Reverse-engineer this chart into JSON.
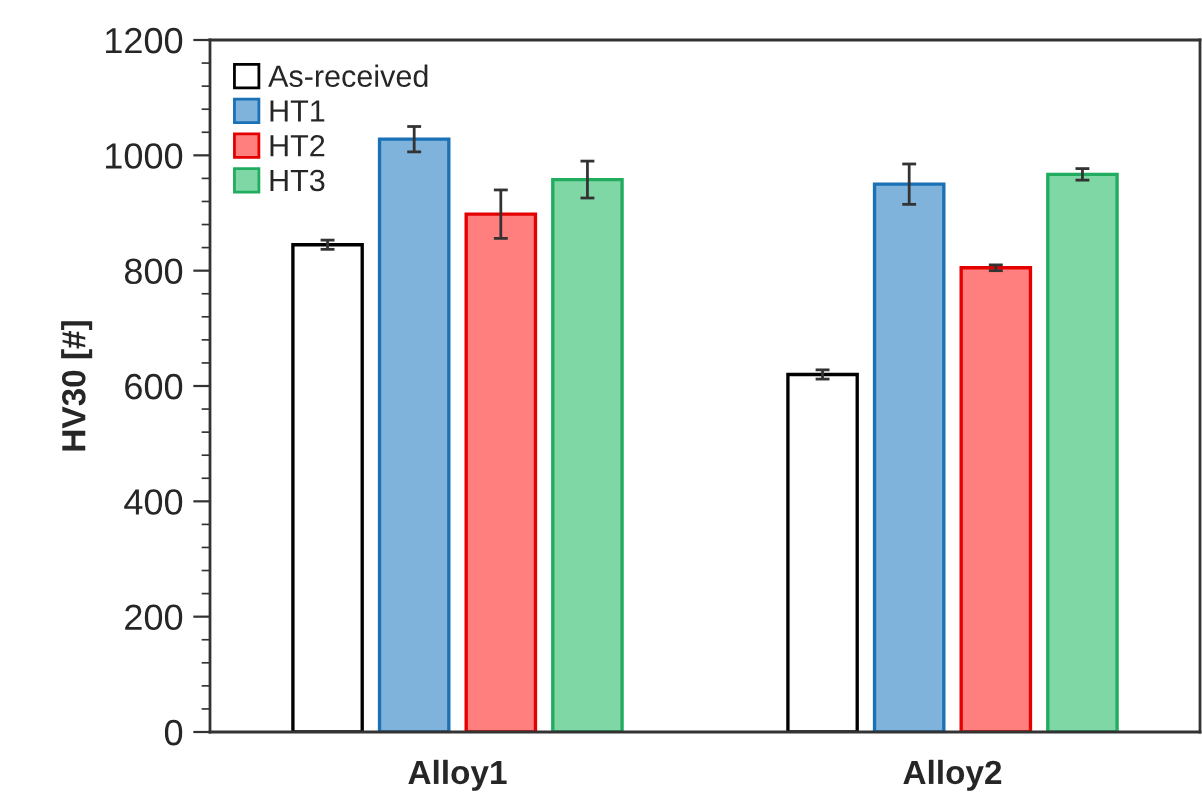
{
  "chart_data": {
    "type": "bar",
    "ylabel": "HV30 [#]",
    "categories": [
      "Alloy1",
      "Alloy2"
    ],
    "series": [
      {
        "name": "As-received",
        "color": "#ffffff",
        "values": [
          845,
          620
        ],
        "errors": [
          8,
          8
        ]
      },
      {
        "name": "HT1",
        "color": "#7fb3dc",
        "values": [
          1028,
          950
        ],
        "errors": [
          22,
          35
        ]
      },
      {
        "name": "HT2",
        "color": "#ff7f7f",
        "values": [
          898,
          805
        ],
        "errors": [
          42,
          5
        ]
      },
      {
        "name": "HT3",
        "color": "#7fd7a6",
        "values": [
          958,
          967
        ],
        "errors": [
          32,
          10
        ]
      }
    ],
    "ylim": [
      0,
      1200
    ],
    "yticks": [
      0,
      {
        "value": 40,
        "label": null
      },
      {
        "value": 80,
        "label": null
      },
      {
        "value": 120,
        "label": null
      },
      {
        "value": 160,
        "label": null
      },
      200,
      {
        "value": 240,
        "label": null
      },
      {
        "value": 280,
        "label": null
      },
      {
        "value": 320,
        "label": null
      },
      {
        "value": 360,
        "label": null
      },
      400,
      {
        "value": 440,
        "label": null
      },
      {
        "value": 480,
        "label": null
      },
      {
        "value": 520,
        "label": null
      },
      {
        "value": 560,
        "label": null
      },
      600,
      {
        "value": 640,
        "label": null
      },
      {
        "value": 680,
        "label": null
      },
      {
        "value": 720,
        "label": null
      },
      {
        "value": 760,
        "label": null
      },
      800,
      {
        "value": 840,
        "label": null
      },
      {
        "value": 880,
        "label": null
      },
      {
        "value": 920,
        "label": null
      },
      {
        "value": 960,
        "label": null
      },
      1000,
      {
        "value": 1040,
        "label": null
      },
      {
        "value": 1080,
        "label": null
      },
      {
        "value": 1120,
        "label": null
      },
      {
        "value": 1160,
        "label": null
      },
      1200
    ],
    "legend": "top left",
    "grid": false
  }
}
